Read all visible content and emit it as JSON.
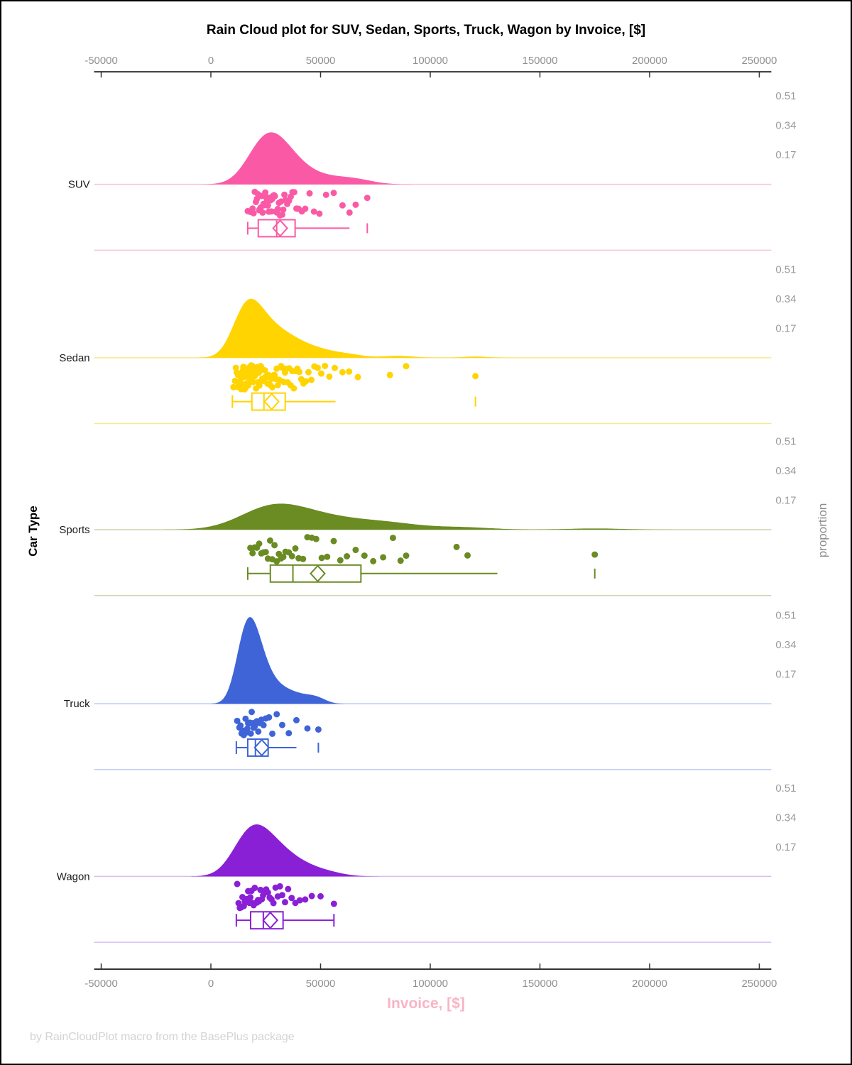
{
  "title": "Rain Cloud plot for SUV, Sedan, Sports, Truck, Wagon by Invoice, [$]",
  "footer": "by RainCloudPlot macro from the BasePlus package",
  "axes": {
    "x": {
      "label": "Invoice, [$]"
    },
    "y_left": {
      "label": "Car Type"
    },
    "y_right": {
      "label": "proportion",
      "tick_values": [
        0.51,
        0.34,
        0.17
      ]
    }
  },
  "chart_data": {
    "type": "raincloud",
    "title": "Rain Cloud plot for SUV, Sedan, Sports, Truck, Wagon by Invoice, [$]",
    "xlabel": "Invoice, [$]",
    "ylabel_left": "Car Type",
    "ylabel_right": "proportion",
    "x_axis": {
      "min": -50000,
      "max": 250000,
      "ticks": [
        -50000,
        0,
        50000,
        100000,
        150000,
        200000,
        250000
      ],
      "tick_labels": [
        "-50000",
        "0",
        "50000",
        "100000",
        "150000",
        "200000",
        "250000"
      ]
    },
    "proportion_ticks": [
      0.51,
      0.34,
      0.17
    ],
    "categories": [
      {
        "name": "SUV",
        "color": "#fa5aa5",
        "light_color": "#fbc0d9",
        "density": {
          "bandwidth": 7000,
          "peak_proportion": 0.3
        },
        "box": {
          "whisker_low": 16800,
          "q1": 21600,
          "median": 30000,
          "q3": 38400,
          "whisker_high": 63200,
          "mean": 31600,
          "outliers": [
            71300
          ],
          "right_cap": false
        },
        "points": [
          16800,
          18000,
          19000,
          19500,
          20000,
          20500,
          21000,
          21500,
          22000,
          22400,
          22800,
          23200,
          23600,
          24000,
          24400,
          24800,
          25200,
          25600,
          26000,
          26400,
          26800,
          27200,
          27600,
          28000,
          28400,
          28800,
          29200,
          29600,
          30000,
          30500,
          31000,
          31500,
          32000,
          32500,
          33000,
          33500,
          34000,
          34800,
          35600,
          36400,
          37200,
          38000,
          39000,
          40000,
          41500,
          43000,
          45000,
          47000,
          49500,
          52500,
          56000,
          60000,
          63200,
          66000,
          71300
        ]
      },
      {
        "name": "Sedan",
        "color": "#ffd400",
        "light_color": "#f7e88f",
        "density": {
          "bandwidth": 5500,
          "peak_proportion": 0.34
        },
        "box": {
          "whisker_low": 9800,
          "q1": 18700,
          "median": 24200,
          "q3": 33900,
          "whisker_high": 56800,
          "mean": 27700,
          "outliers": [
            120600
          ],
          "right_cap": false
        },
        "points": [
          10300,
          11000,
          11400,
          11800,
          12100,
          12400,
          12700,
          13000,
          13200,
          13400,
          13600,
          13800,
          14000,
          14200,
          14400,
          14600,
          14800,
          15000,
          15200,
          15400,
          15600,
          15800,
          16000,
          16200,
          16400,
          16600,
          16800,
          17000,
          17200,
          17400,
          17600,
          17800,
          18000,
          18200,
          18400,
          18600,
          18800,
          19000,
          19200,
          19400,
          19600,
          19800,
          20000,
          20300,
          20600,
          20900,
          21200,
          21500,
          21800,
          22100,
          22400,
          22700,
          23000,
          23400,
          23800,
          24200,
          24600,
          25000,
          25400,
          25800,
          26200,
          26600,
          27000,
          27500,
          28000,
          28500,
          29000,
          29500,
          30000,
          30500,
          31000,
          31500,
          32000,
          32600,
          33200,
          33800,
          34400,
          35000,
          35700,
          36400,
          37100,
          37800,
          38600,
          39400,
          40300,
          41200,
          42200,
          43300,
          44500,
          45800,
          47200,
          48700,
          50300,
          52000,
          54000,
          56500,
          60000,
          63000,
          67000,
          81600,
          89000,
          120600
        ]
      },
      {
        "name": "Sports",
        "color": "#6b8b23",
        "light_color": "#ccd6ad",
        "density": {
          "bandwidth": 13000,
          "peak_proportion": 0.15
        },
        "box": {
          "whisker_low": 16800,
          "q1": 27100,
          "median": 37400,
          "q3": 68400,
          "whisker_high": 130600,
          "mean": 48700,
          "outliers": [
            175000
          ],
          "right_cap": false
        },
        "points": [
          18000,
          19000,
          20000,
          21000,
          22000,
          23000,
          24000,
          25000,
          26000,
          27000,
          28000,
          29000,
          30000,
          31000,
          32000,
          33000,
          34000,
          35500,
          37000,
          38500,
          40000,
          42000,
          44000,
          46000,
          48000,
          50500,
          53000,
          56000,
          59000,
          62000,
          66000,
          70000,
          74000,
          78500,
          83000,
          86500,
          89000,
          112000,
          117000,
          175000
        ]
      },
      {
        "name": "Truck",
        "color": "#3e64d7",
        "light_color": "#b9c9ef",
        "density": {
          "bandwidth": 4000,
          "peak_proportion": 0.5
        },
        "box": {
          "whisker_low": 11600,
          "q1": 16800,
          "median": 20300,
          "q3": 26100,
          "whisker_high": 39000,
          "mean": 23200,
          "outliers": [
            49000
          ],
          "right_cap": false
        },
        "points": [
          12000,
          13000,
          13500,
          14000,
          14500,
          15000,
          15400,
          15800,
          16200,
          16600,
          17000,
          17400,
          17800,
          18200,
          18600,
          19000,
          19500,
          20000,
          20500,
          21000,
          21600,
          22300,
          23000,
          24000,
          25000,
          26500,
          28000,
          30000,
          32500,
          35500,
          39000,
          44000,
          49000
        ]
      },
      {
        "name": "Wagon",
        "color": "#8a20d5",
        "light_color": "#d9bdf0",
        "density": {
          "bandwidth": 7000,
          "peak_proportion": 0.3
        },
        "box": {
          "whisker_low": 11600,
          "q1": 18100,
          "median": 23900,
          "q3": 32900,
          "whisker_high": 56100,
          "mean": 27100,
          "outliers": [],
          "right_cap": true
        },
        "points": [
          12000,
          12600,
          13200,
          13800,
          14400,
          15000,
          15500,
          16000,
          16500,
          17000,
          17500,
          18000,
          18500,
          19000,
          19500,
          20000,
          20500,
          21000,
          21500,
          22000,
          22600,
          23200,
          23800,
          24500,
          25200,
          26000,
          26800,
          27600,
          28500,
          29500,
          30500,
          31500,
          32500,
          33800,
          35200,
          36800,
          38500,
          40500,
          43000,
          46000,
          50000,
          56100
        ]
      }
    ]
  }
}
